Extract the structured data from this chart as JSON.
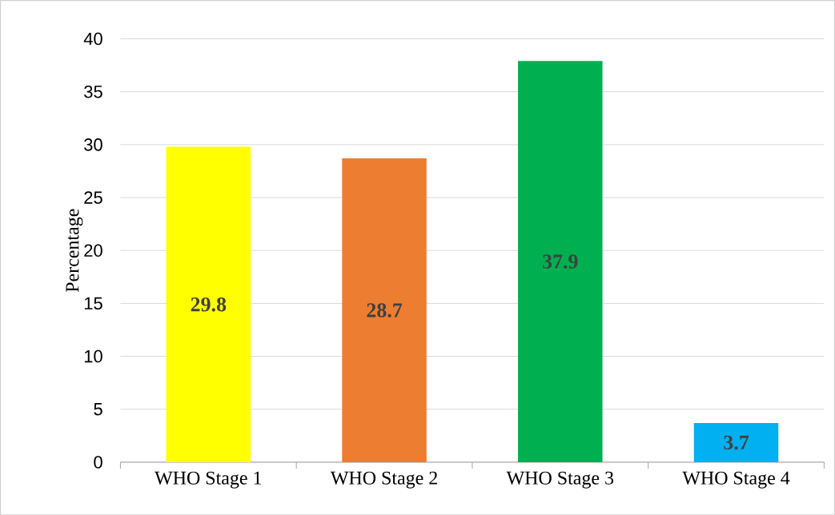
{
  "chart_data": {
    "type": "bar",
    "ylabel": "Percentage",
    "categories": [
      "WHO Stage 1",
      "WHO Stage 2",
      "WHO Stage 3",
      "WHO Stage 4"
    ],
    "values": [
      29.8,
      28.7,
      37.9,
      3.7
    ],
    "colors": [
      "#ffff00",
      "#ed7d31",
      "#00b050",
      "#00b0f0"
    ],
    "ylim": [
      0,
      40
    ],
    "yticks": [
      0,
      5,
      10,
      15,
      20,
      25,
      30,
      35,
      40
    ],
    "grid": "y",
    "data_labels": true
  }
}
